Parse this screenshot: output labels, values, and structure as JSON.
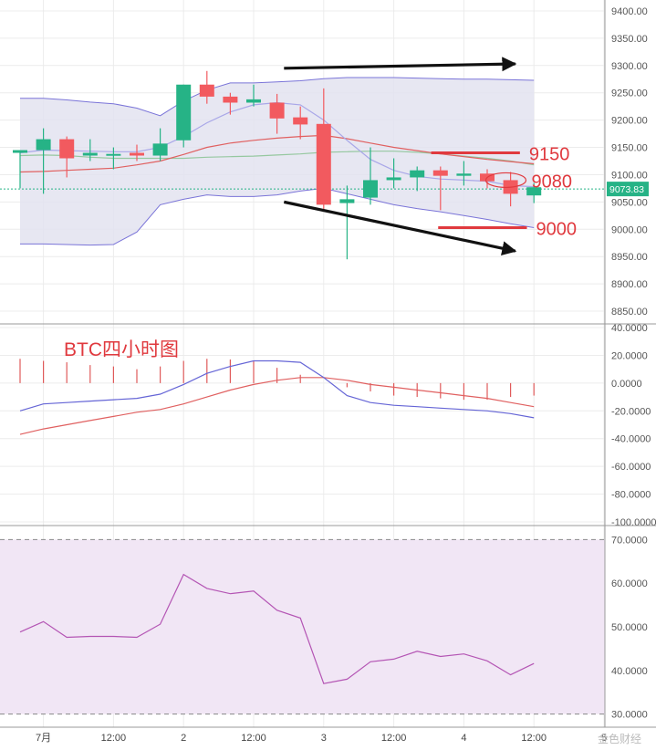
{
  "watermark": "金色财经",
  "chart_data": [
    {
      "type": "candlestick",
      "panel": "price",
      "ylim": [
        8830,
        9420
      ],
      "yticks": [
        "9400.00",
        "9350.00",
        "9300.00",
        "9250.00",
        "9200.00",
        "9150.00",
        "9100.00",
        "9050.00",
        "9000.00",
        "8950.00",
        "8900.00",
        "8850.00"
      ],
      "current_price_label": "9073.83",
      "current_price": 9073.83,
      "candles": [
        {
          "o": 9140,
          "h": 9145,
          "l": 9075,
          "c": 9145
        },
        {
          "o": 9145,
          "h": 9185,
          "l": 9065,
          "c": 9165
        },
        {
          "o": 9165,
          "h": 9170,
          "l": 9095,
          "c": 9130
        },
        {
          "o": 9135,
          "h": 9165,
          "l": 9125,
          "c": 9140
        },
        {
          "o": 9135,
          "h": 9150,
          "l": 9110,
          "c": 9138
        },
        {
          "o": 9140,
          "h": 9155,
          "l": 9125,
          "c": 9135
        },
        {
          "o": 9135,
          "h": 9185,
          "l": 9125,
          "c": 9157
        },
        {
          "o": 9163,
          "h": 9265,
          "l": 9150,
          "c": 9265
        },
        {
          "o": 9265,
          "h": 9290,
          "l": 9230,
          "c": 9243
        },
        {
          "o": 9243,
          "h": 9250,
          "l": 9210,
          "c": 9232
        },
        {
          "o": 9232,
          "h": 9265,
          "l": 9225,
          "c": 9238
        },
        {
          "o": 9232,
          "h": 9248,
          "l": 9175,
          "c": 9203
        },
        {
          "o": 9205,
          "h": 9225,
          "l": 9165,
          "c": 9192
        },
        {
          "o": 9193,
          "h": 9258,
          "l": 9035,
          "c": 9045
        },
        {
          "o": 9048,
          "h": 9080,
          "l": 8945,
          "c": 9055
        },
        {
          "o": 9058,
          "h": 9150,
          "l": 9045,
          "c": 9090
        },
        {
          "o": 9090,
          "h": 9130,
          "l": 9075,
          "c": 9095
        },
        {
          "o": 9095,
          "h": 9115,
          "l": 9070,
          "c": 9108
        },
        {
          "o": 9108,
          "h": 9115,
          "l": 9035,
          "c": 9098
        },
        {
          "o": 9098,
          "h": 9125,
          "l": 9080,
          "c": 9102
        },
        {
          "o": 9102,
          "h": 9110,
          "l": 9075,
          "c": 9088
        },
        {
          "o": 9090,
          "h": 9105,
          "l": 9042,
          "c": 9065
        },
        {
          "o": 9062,
          "h": 9085,
          "l": 9048,
          "c": 9077
        }
      ],
      "bollinger_upper": [
        9240,
        9240,
        9237,
        9233,
        9230,
        9222,
        9208,
        9235,
        9255,
        9268,
        9268,
        9270,
        9272,
        9276,
        9278,
        9278,
        9278,
        9277,
        9276,
        9275,
        9275,
        9274,
        9273
      ],
      "bollinger_lower": [
        8973,
        8973,
        8972,
        8971,
        8972,
        8995,
        9045,
        9055,
        9063,
        9060,
        9060,
        9063,
        9070,
        9075,
        9065,
        9055,
        9045,
        9038,
        9032,
        9025,
        9018,
        9010,
        9003
      ],
      "bollinger_mid": [
        9105,
        9106,
        9108,
        9110,
        9112,
        9118,
        9125,
        9137,
        9150,
        9158,
        9163,
        9167,
        9170,
        9172,
        9166,
        9158,
        9150,
        9144,
        9138,
        9133,
        9128,
        9124,
        9120
      ],
      "ma_fast": [
        9140,
        9145,
        9144,
        9143,
        9142,
        9142,
        9150,
        9170,
        9195,
        9215,
        9228,
        9232,
        9228,
        9200,
        9163,
        9128,
        9108,
        9097,
        9092,
        9090,
        9088,
        9080,
        9078
      ],
      "ma_slow": [
        9135,
        9136,
        9135,
        9132,
        9130,
        9130,
        9130,
        9130,
        9132,
        9133,
        9134,
        9136,
        9138,
        9141,
        9142,
        9143,
        9143,
        9141,
        9138,
        9134,
        9130,
        9125,
        9118
      ],
      "colors": {
        "up": "#26b386",
        "down": "#f25a5f",
        "band": "#7a74d8",
        "band_fill": "#e3e3f0",
        "mid": "#e06060",
        "fast": "#a9a7e8",
        "slow": "#96c8a0",
        "price_line": "#26b386"
      },
      "annotations": {
        "arrows": [
          {
            "from": [
              11.3,
              9295
            ],
            "to": [
              21.2,
              9303
            ]
          },
          {
            "from": [
              11.3,
              9050
            ],
            "to": [
              21.2,
              8960
            ]
          }
        ],
        "levels": [
          {
            "label": "9150",
            "y": 9140,
            "x_from": 17.6,
            "x_to": 21.4
          },
          {
            "label": "9000",
            "y": 9003,
            "x_from": 17.9,
            "x_to": 21.7
          }
        ],
        "circle": {
          "label": "9080",
          "x": 20.8,
          "y": 9090
        }
      }
    },
    {
      "type": "line",
      "panel": "macd",
      "title": "BTC四小时图",
      "ylim": [
        -102,
        42
      ],
      "yticks": [
        "40.0000",
        "20.0000",
        "0.0000",
        "-20.0000",
        "-40.0000",
        "-60.0000",
        "-80.0000",
        "-100.0000"
      ],
      "histogram": [
        17.5,
        16,
        15,
        13,
        12,
        10,
        12,
        16,
        17.5,
        17,
        16,
        11,
        6,
        0,
        -3,
        -6,
        -9,
        -10,
        -11,
        -12,
        -12,
        -10,
        -9
      ],
      "dif": [
        -20,
        -15,
        -14,
        -13,
        -12,
        -11,
        -8,
        -1,
        7,
        12,
        16,
        16,
        15,
        4,
        -9,
        -14,
        -16,
        -17,
        -18,
        -19,
        -20,
        -22,
        -25
      ],
      "dea": [
        -37,
        -33,
        -30,
        -27,
        -24,
        -21,
        -19,
        -15,
        -10,
        -5,
        -1,
        2,
        4,
        4,
        2,
        -1,
        -3,
        -5,
        -7,
        -9,
        -11,
        -14,
        -17
      ],
      "colors": {
        "hist": "#e05a5a",
        "dif": "#6565d6",
        "dea": "#e06060"
      }
    },
    {
      "type": "line",
      "panel": "rsi",
      "ylim": [
        27,
        73
      ],
      "yticks": [
        "70.0000",
        "60.0000",
        "50.0000",
        "40.0000",
        "30.0000"
      ],
      "upper": 70,
      "lower": 30,
      "values": [
        48.8,
        51.2,
        47.6,
        47.8,
        47.8,
        47.6,
        50.6,
        62.0,
        58.8,
        57.6,
        58.2,
        53.8,
        52.0,
        37.0,
        38.0,
        42.0,
        42.6,
        44.4,
        43.2,
        43.8,
        42.2,
        39.0,
        41.6
      ],
      "colors": {
        "line": "#b455b4",
        "fill": "#f1e6f5",
        "bound": "#888888"
      }
    },
    {
      "type": "axis",
      "panel": "time",
      "xticks": [
        {
          "label": "7月",
          "i": 1
        },
        {
          "label": "12:00",
          "i": 4
        },
        {
          "label": "2",
          "i": 7
        },
        {
          "label": "12:00",
          "i": 10
        },
        {
          "label": "3",
          "i": 13
        },
        {
          "label": "12:00",
          "i": 16
        },
        {
          "label": "4",
          "i": 19
        },
        {
          "label": "12:00",
          "i": 22
        },
        {
          "label": "5",
          "i": 25
        }
      ]
    }
  ]
}
